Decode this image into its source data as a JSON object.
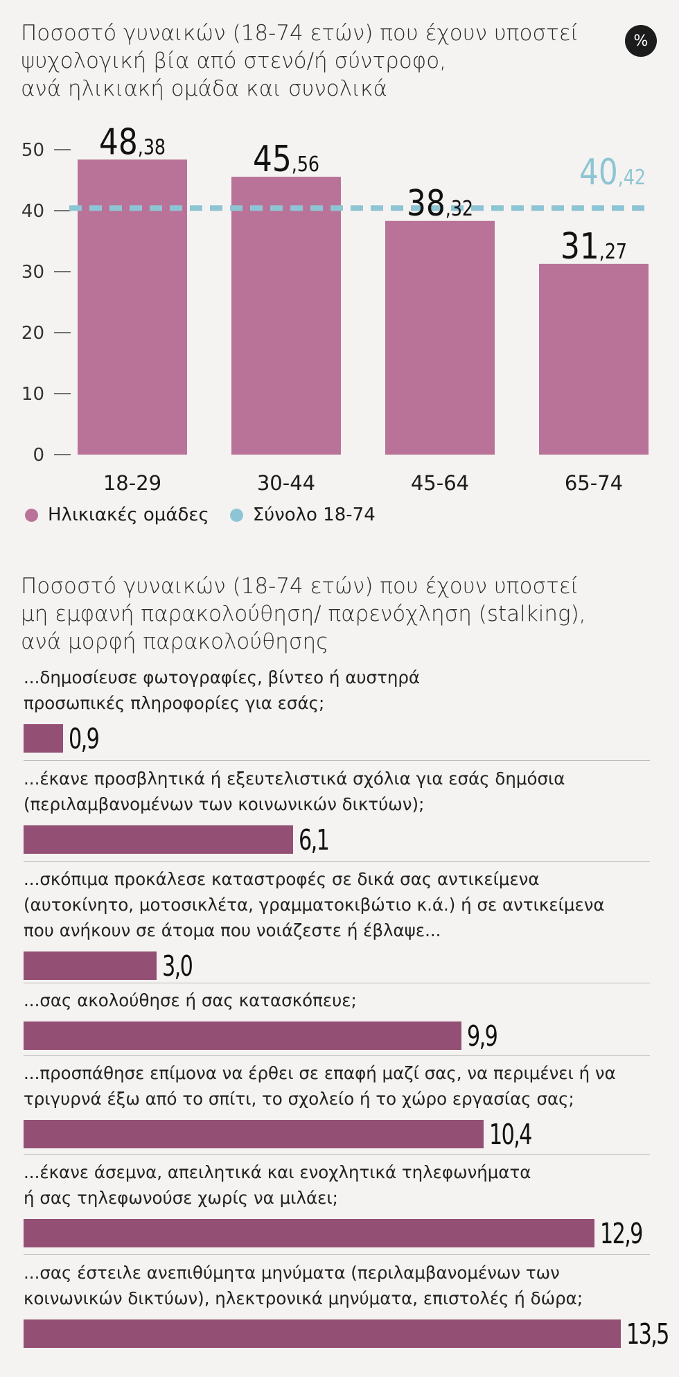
{
  "badge": "%",
  "colors": {
    "age_bar": "#b97398",
    "total_line": "#8ec5d4",
    "stalking_bar": "#944f74",
    "axis": "#444444"
  },
  "chart1_title_lines": [
    "Ποσοστό γυναικών (18-74 ετών) που έχουν υποστεί",
    "ψυχολογική βία από στενό/ή σύντροφο,",
    "ανά ηλικιακή ομάδα και συνολικά"
  ],
  "chart2_title_lines": [
    "Ποσοστό γυναικών (18-74 ετών) που έχουν υποστεί",
    "μη εμφανή παρακολούθηση/ παρενόχληση (stalking),",
    "ανά μορφή παρακολούθησης"
  ],
  "legend": [
    {
      "label": "Ηλικιακές ομάδες",
      "color": "#b97398"
    },
    {
      "label": "Σύνολο 18-74",
      "color": "#8ec5d4"
    }
  ],
  "chart_data": [
    {
      "type": "bar",
      "title": "Ποσοστό γυναικών (18-74 ετών) που έχουν υποστεί ψυχολογική βία από στενό/ή σύντροφο, ανά ηλικιακή ομάδα και συνολικά",
      "categories": [
        "18-29",
        "30-44",
        "45-64",
        "65-74"
      ],
      "series": [
        {
          "name": "Ηλικιακές ομάδες",
          "values": [
            48.38,
            45.56,
            38.32,
            31.27
          ]
        }
      ],
      "value_labels": [
        {
          "int": "48",
          "dec": ",38"
        },
        {
          "int": "45",
          "dec": ",56"
        },
        {
          "int": "38",
          "dec": ",32"
        },
        {
          "int": "31",
          "dec": ",27"
        }
      ],
      "reference_line": {
        "name": "Σύνολο 18-74",
        "value": 40.42,
        "int": "40",
        "dec": ",42"
      },
      "yticks": [
        "0",
        "10",
        "20",
        "30",
        "40",
        "50"
      ],
      "ylim": [
        0,
        50
      ],
      "legend": "bottom-left"
    },
    {
      "type": "bar",
      "orientation": "horizontal",
      "title": "Ποσοστό γυναικών (18-74 ετών) που έχουν υποστεί μη εμφανή παρακολούθηση/ παρενόχληση (stalking), ανά μορφή παρακολούθησης",
      "items": [
        {
          "label_lines": [
            "...δημοσίευσε φωτογραφίες, βίντεο ή αυστηρά",
            "προσωπικές πληροφορίες για εσάς;"
          ],
          "value": 0.9,
          "value_label": "0,9"
        },
        {
          "label_lines": [
            "...έκανε προσβλητικά ή εξευτελιστικά σχόλια για εσάς δημόσια",
            "(περιλαμβανομένων των κοινωνικών δικτύων);"
          ],
          "value": 6.1,
          "value_label": "6,1"
        },
        {
          "label_lines": [
            "...σκόπιμα προκάλεσε καταστροφές σε δικά σας αντικείμενα",
            "(αυτοκίνητο, μοτοσικλέτα, γραμματοκιβώτιο κ.ά.) ή σε αντικείμενα",
            "που ανήκουν σε άτομα που νοιάζεστε ή έβλαψε..."
          ],
          "value": 3.0,
          "value_label": "3,0"
        },
        {
          "label_lines": [
            "...σας ακολούθησε ή σας κατασκόπευε;"
          ],
          "value": 9.9,
          "value_label": "9,9"
        },
        {
          "label_lines": [
            "...προσπάθησε επίμονα να έρθει σε επαφή μαζί σας, να περιμένει ή να",
            "τριγυρνά έξω από το σπίτι, το σχολείο ή το χώρο εργασίας σας;"
          ],
          "value": 10.4,
          "value_label": "10,4"
        },
        {
          "label_lines": [
            "...έκανε άσεμνα, απειλητικά και ενοχλητικά τηλεφωνήματα",
            "ή σας τηλεφωνούσε χωρίς να μιλάει;"
          ],
          "value": 12.9,
          "value_label": "12,9"
        },
        {
          "label_lines": [
            "...σας έστειλε ανεπιθύμητα μηνύματα (περιλαμβανομένων των",
            "κοινωνικών δικτύων), ηλεκτρονικά μηνύματα, επιστολές ή δώρα;"
          ],
          "value": 13.5,
          "value_label": "13,5"
        }
      ]
    }
  ]
}
